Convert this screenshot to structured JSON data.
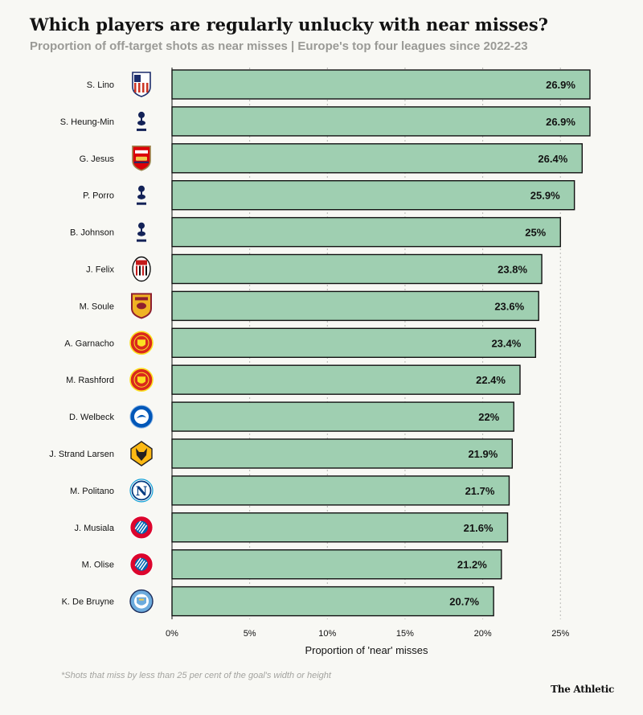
{
  "header": {
    "title": "Which players are regularly unlucky with near misses?",
    "subtitle": "Proportion of off-target shots as near misses | Europe's top four leagues since 2022-23"
  },
  "footer": {
    "footnote": "*Shots that miss by less than 25 per cent of the goal's width or height",
    "brand": "The Athletic"
  },
  "colors": {
    "bar_fill": "#9fcfb1",
    "bar_stroke": "#121212",
    "grid": "#b8b8b4"
  },
  "chart_data": {
    "type": "bar",
    "orientation": "horizontal",
    "xlabel": "Proportion of 'near' misses",
    "xlim": [
      0,
      27
    ],
    "x_ticks": [
      0,
      5,
      10,
      15,
      20,
      25
    ],
    "x_tick_labels": [
      "0%",
      "5%",
      "10%",
      "15%",
      "20%",
      "25%"
    ],
    "grid": true,
    "categories": [
      "S. Lino",
      "S. Heung-Min",
      "G. Jesus",
      "P. Porro",
      "B. Johnson",
      "J. Felix",
      "M. Soule",
      "A. Garnacho",
      "M. Rashford",
      "D. Welbeck",
      "J. Strand Larsen",
      "M. Politano",
      "J. Musiala",
      "M. Olise",
      "K. De Bruyne"
    ],
    "values": [
      26.9,
      26.9,
      26.4,
      25.9,
      25,
      23.8,
      23.6,
      23.4,
      22.4,
      22,
      21.9,
      21.7,
      21.6,
      21.2,
      20.7
    ],
    "value_labels": [
      "26.9%",
      "26.9%",
      "26.4%",
      "25.9%",
      "25%",
      "23.8%",
      "23.6%",
      "23.4%",
      "22.4%",
      "22%",
      "21.9%",
      "21.7%",
      "21.6%",
      "21.2%",
      "20.7%"
    ],
    "club_icons": [
      "atletico-madrid-crest-icon",
      "tottenham-crest-icon",
      "arsenal-crest-icon",
      "tottenham-crest-icon",
      "tottenham-crest-icon",
      "ac-milan-crest-icon",
      "roma-crest-icon",
      "man-united-crest-icon",
      "man-united-crest-icon",
      "brighton-crest-icon",
      "wolves-crest-icon",
      "napoli-crest-icon",
      "bayern-crest-icon",
      "bayern-crest-icon",
      "man-city-crest-icon"
    ]
  }
}
